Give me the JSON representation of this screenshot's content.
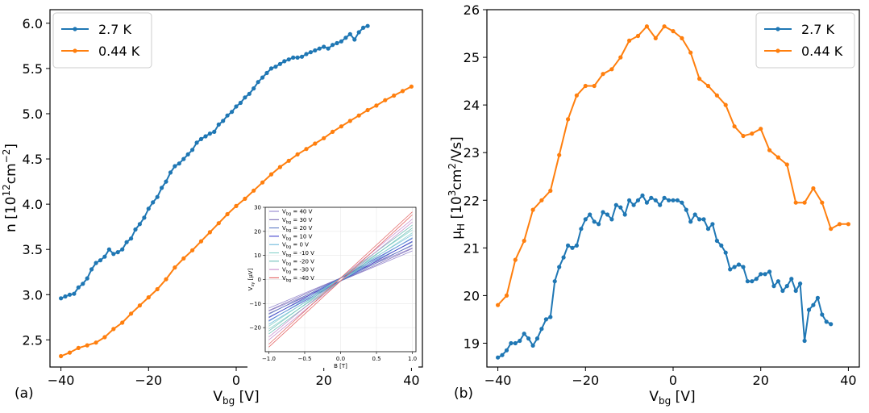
{
  "figure": {
    "panel_a_label": "(a)",
    "panel_b_label": "(b)"
  },
  "chart_data": [
    {
      "type": "line",
      "panel": "(a)",
      "xlabel_main": "V",
      "xlabel_sub": "bg",
      "xlabel_unit": " [V]",
      "ylabel_main": "n [10",
      "ylabel_sup1": "12",
      "ylabel_mid": "cm",
      "ylabel_sup2": "−2",
      "ylabel_end": "]",
      "xlim": [
        -42.5,
        42.5
      ],
      "ylim": [
        2.2,
        6.15
      ],
      "xticks": [
        -40,
        -20,
        0,
        20,
        40
      ],
      "xtick_labels": [
        "−40",
        "−20",
        "0",
        "20",
        "40"
      ],
      "yticks": [
        2.5,
        3.0,
        3.5,
        4.0,
        4.5,
        5.0,
        5.5,
        6.0
      ],
      "ytick_labels": [
        "2.5",
        "3.0",
        "3.5",
        "4.0",
        "4.5",
        "5.0",
        "5.5",
        "6.0"
      ],
      "legend_position": "top-left",
      "series": [
        {
          "name": "2.7 K",
          "color": "#1f77b4",
          "x_start": -40,
          "x_step": 1,
          "values": [
            2.96,
            2.98,
            3.0,
            3.01,
            3.08,
            3.12,
            3.18,
            3.28,
            3.35,
            3.38,
            3.42,
            3.5,
            3.45,
            3.47,
            3.5,
            3.58,
            3.62,
            3.72,
            3.78,
            3.85,
            3.95,
            4.02,
            4.08,
            4.18,
            4.25,
            4.35,
            4.42,
            4.45,
            4.5,
            4.55,
            4.6,
            4.68,
            4.72,
            4.75,
            4.78,
            4.8,
            4.88,
            4.92,
            4.98,
            5.02,
            5.08,
            5.12,
            5.18,
            5.22,
            5.28,
            5.35,
            5.4,
            5.45,
            5.5,
            5.52,
            5.55,
            5.58,
            5.6,
            5.62,
            5.62,
            5.63,
            5.66,
            5.68,
            5.7,
            5.72,
            5.74,
            5.72,
            5.76,
            5.78,
            5.8,
            5.84,
            5.88,
            5.82,
            5.9,
            5.95,
            5.97
          ]
        },
        {
          "name": "0.44 K",
          "color": "#ff7f0e",
          "x_start": -40,
          "x_step": 2,
          "values": [
            2.32,
            2.36,
            2.41,
            2.44,
            2.47,
            2.53,
            2.62,
            2.69,
            2.79,
            2.88,
            2.97,
            3.06,
            3.17,
            3.3,
            3.4,
            3.49,
            3.59,
            3.69,
            3.79,
            3.89,
            3.98,
            4.06,
            4.15,
            4.24,
            4.33,
            4.41,
            4.48,
            4.55,
            4.61,
            4.67,
            4.73,
            4.8,
            4.86,
            4.92,
            4.98,
            5.04,
            5.09,
            5.15,
            5.2,
            5.25,
            5.3
          ]
        }
      ]
    },
    {
      "type": "line",
      "panel": "inset",
      "xlabel": "B [T]",
      "ylabel": "V",
      "ylabel_sub": "xy",
      "ylabel_unit": " [μV]",
      "xlim": [
        -1.05,
        1.05
      ],
      "ylim": [
        -30,
        30
      ],
      "xticks": [
        -1.0,
        -0.5,
        0.0,
        0.5,
        1.0
      ],
      "xtick_labels": [
        "−1.0",
        "−0.5",
        "0.0",
        "0.5",
        "1.0"
      ],
      "yticks": [
        -20,
        -10,
        0,
        10,
        20,
        30
      ],
      "ytick_labels": [
        "−20",
        "−10",
        "0",
        "10",
        "20",
        "30"
      ],
      "series": [
        {
          "name": "V",
          "sub": "bg",
          "suffix": " = 40 V",
          "color": "#8878c8",
          "slope": 12.5
        },
        {
          "name": "V",
          "sub": "bg",
          "suffix": " = 30 V",
          "color": "#6f5fb0",
          "slope": 13.5
        },
        {
          "name": "V",
          "sub": "bg",
          "suffix": " = 20 V",
          "color": "#4f6fc0",
          "slope": 15
        },
        {
          "name": "V",
          "sub": "bg",
          "suffix": " = 10 V",
          "color": "#3030c8",
          "slope": 16.5
        },
        {
          "name": "V",
          "sub": "bg",
          "suffix": " = 0 V",
          "color": "#5fb0d8",
          "slope": 18
        },
        {
          "name": "V",
          "sub": "bg",
          "suffix": " = -10 V",
          "color": "#7fd0c8",
          "slope": 20
        },
        {
          "name": "V",
          "sub": "bg",
          "suffix": " = -20 V",
          "color": "#5fb8b0",
          "slope": 22
        },
        {
          "name": "V",
          "sub": "bg",
          "suffix": " = -30 V",
          "color": "#c080c8",
          "slope": 24.5
        },
        {
          "name": "V",
          "sub": "bg",
          "suffix": " = -40 V",
          "color": "#e05050",
          "slope": 27.5
        }
      ]
    },
    {
      "type": "line",
      "panel": "(b)",
      "xlabel_main": "V",
      "xlabel_sub": "bg",
      "xlabel_unit": " [V]",
      "ylabel_main": "μ",
      "ylabel_sub": "H",
      "ylabel_mid": " [10",
      "ylabel_sup1": "3",
      "ylabel_mid2": "cm",
      "ylabel_sup2": "2",
      "ylabel_end": "/Vs]",
      "xlim": [
        -42.5,
        42.5
      ],
      "ylim": [
        18.5,
        26.0
      ],
      "xticks": [
        -40,
        -20,
        0,
        20,
        40
      ],
      "xtick_labels": [
        "−40",
        "−20",
        "0",
        "20",
        "40"
      ],
      "yticks": [
        19,
        20,
        21,
        22,
        23,
        24,
        25,
        26
      ],
      "ytick_labels": [
        "19",
        "20",
        "21",
        "22",
        "23",
        "24",
        "25",
        "26"
      ],
      "legend_position": "top-right",
      "series": [
        {
          "name": "2.7 K",
          "color": "#1f77b4",
          "x_start": -40,
          "x_step": 1,
          "values": [
            18.7,
            18.75,
            18.85,
            19.0,
            19.0,
            19.05,
            19.2,
            19.1,
            18.95,
            19.1,
            19.3,
            19.5,
            19.55,
            20.3,
            20.6,
            20.8,
            21.05,
            21.0,
            21.05,
            21.4,
            21.6,
            21.7,
            21.55,
            21.5,
            21.75,
            21.7,
            21.6,
            21.9,
            21.85,
            21.7,
            22.0,
            21.9,
            22.0,
            22.1,
            21.95,
            22.05,
            22.0,
            21.9,
            22.05,
            22.0,
            22.0,
            22.0,
            21.95,
            21.8,
            21.55,
            21.7,
            21.6,
            21.6,
            21.4,
            21.5,
            21.15,
            21.05,
            20.9,
            20.55,
            20.6,
            20.65,
            20.6,
            20.3,
            20.3,
            20.35,
            20.45,
            20.45,
            20.5,
            20.2,
            20.3,
            20.1,
            20.2,
            20.35,
            20.1,
            20.25,
            19.05,
            19.7,
            19.8,
            19.95,
            19.6,
            19.45,
            19.4
          ]
        },
        {
          "name": "0.44 K",
          "color": "#ff7f0e",
          "x_start": -40,
          "x_step": 2,
          "values": [
            19.8,
            20.0,
            20.75,
            21.15,
            21.8,
            22.0,
            22.2,
            22.95,
            23.7,
            24.2,
            24.4,
            24.4,
            24.65,
            24.75,
            25.0,
            25.35,
            25.45,
            25.65,
            25.4,
            25.65,
            25.55,
            25.4,
            25.1,
            24.55,
            24.4,
            24.2,
            24.0,
            23.55,
            23.35,
            23.4,
            23.5,
            23.05,
            22.9,
            22.75,
            21.95,
            21.95,
            22.25,
            21.95,
            21.4,
            21.5,
            21.5
          ]
        }
      ]
    }
  ]
}
